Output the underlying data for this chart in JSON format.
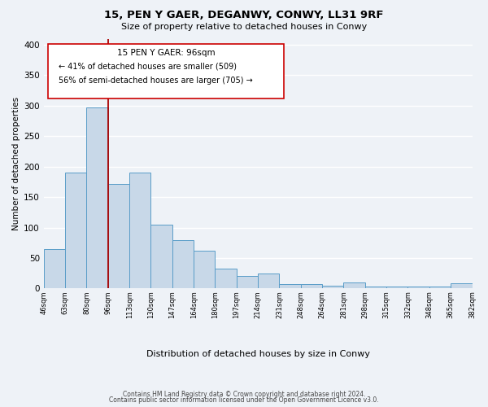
{
  "title": "15, PEN Y GAER, DEGANWY, CONWY, LL31 9RF",
  "subtitle": "Size of property relative to detached houses in Conwy",
  "xlabel": "Distribution of detached houses by size in Conwy",
  "ylabel": "Number of detached properties",
  "bar_values": [
    65,
    190,
    297,
    172,
    190,
    105,
    80,
    62,
    33,
    20,
    25,
    7,
    7,
    4,
    10,
    3,
    3,
    3,
    3,
    8
  ],
  "bar_labels": [
    "46sqm",
    "63sqm",
    "80sqm",
    "96sqm",
    "113sqm",
    "130sqm",
    "147sqm",
    "164sqm",
    "180sqm",
    "197sqm",
    "214sqm",
    "231sqm",
    "248sqm",
    "264sqm",
    "281sqm",
    "298sqm",
    "315sqm",
    "332sqm",
    "348sqm",
    "365sqm",
    "382sqm"
  ],
  "bar_color": "#c8d8e8",
  "bar_edge_color": "#5a9dc8",
  "vline_x": 3,
  "vline_color": "#aa0000",
  "ylim": [
    0,
    410
  ],
  "yticks": [
    0,
    50,
    100,
    150,
    200,
    250,
    300,
    350,
    400
  ],
  "annotation_title": "15 PEN Y GAER: 96sqm",
  "annotation_line1": "← 41% of detached houses are smaller (509)",
  "annotation_line2": "56% of semi-detached houses are larger (705) →",
  "footer1": "Contains HM Land Registry data © Crown copyright and database right 2024.",
  "footer2": "Contains public sector information licensed under the Open Government Licence v3.0.",
  "bg_color": "#eef2f7",
  "grid_color": "#ffffff"
}
